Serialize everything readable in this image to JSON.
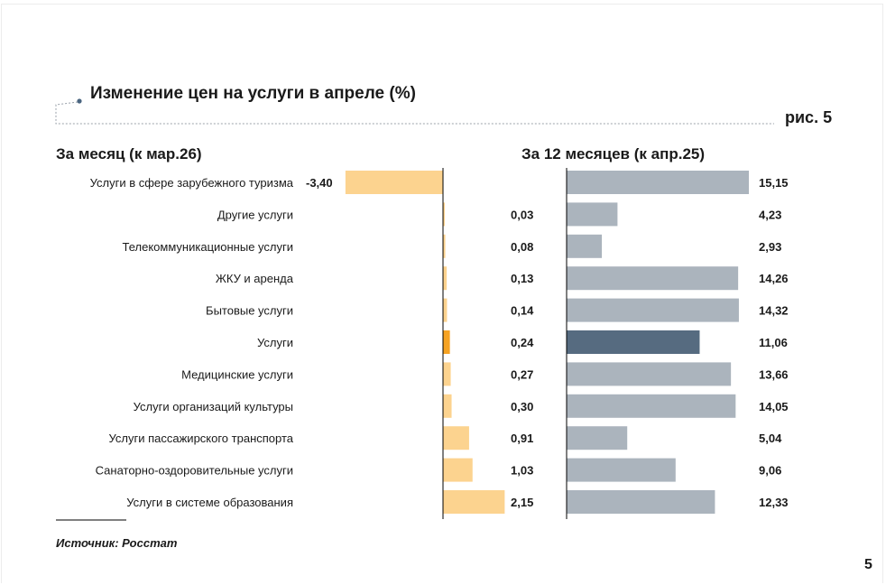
{
  "header": {
    "title": "Изменение цен на услуги в апреле (%)",
    "figure_label": "рис. 5"
  },
  "footer": {
    "source": "Источник: Росстат",
    "page_number": "5"
  },
  "colors": {
    "month_bar": "#fcd38f",
    "month_bar_highlight": "#f6a323",
    "year_bar": "#abb4bd",
    "year_bar_highlight": "#566b80"
  },
  "chart_data": [
    {
      "type": "bar",
      "orientation": "horizontal",
      "title": "За месяц (к мар.26)",
      "categories": [
        "Услуги в сфере зарубежного туризма",
        "Другие услуги",
        "Телекоммуникационные услуги",
        "ЖКУ и аренда",
        "Бытовые услуги",
        "Услуги",
        "Медицинские услуги",
        "Услуги организаций культуры",
        "Услуги пассажирского транспорта",
        "Санаторно-оздоровительные услуги",
        "Услуги в системе образования"
      ],
      "values": [
        -3.4,
        0.03,
        0.08,
        0.13,
        0.14,
        0.24,
        0.27,
        0.3,
        0.91,
        1.03,
        2.15
      ],
      "labels": [
        "-3,40",
        "0,03",
        "0,08",
        "0,13",
        "0,14",
        "0,24",
        "0,27",
        "0,30",
        "0,91",
        "1,03",
        "2,15"
      ],
      "highlight_index": 5,
      "xlim": [
        -3.4,
        2.15
      ]
    },
    {
      "type": "bar",
      "orientation": "horizontal",
      "title": "За 12 месяцев (к апр.25)",
      "categories": [
        "Услуги в сфере зарубежного туризма",
        "Другие услуги",
        "Телекоммуникационные услуги",
        "ЖКУ и аренда",
        "Бытовые услуги",
        "Услуги",
        "Медицинские услуги",
        "Услуги организаций культуры",
        "Услуги пассажирского транспорта",
        "Санаторно-оздоровительные услуги",
        "Услуги в системе образования"
      ],
      "values": [
        15.15,
        4.23,
        2.93,
        14.26,
        14.32,
        11.06,
        13.66,
        14.05,
        5.04,
        9.06,
        12.33
      ],
      "labels": [
        "15,15",
        "4,23",
        "2,93",
        "14,26",
        "14,32",
        "11,06",
        "13,66",
        "14,05",
        "5,04",
        "9,06",
        "12,33"
      ],
      "highlight_index": 5,
      "xlim": [
        0,
        15.15
      ]
    }
  ]
}
